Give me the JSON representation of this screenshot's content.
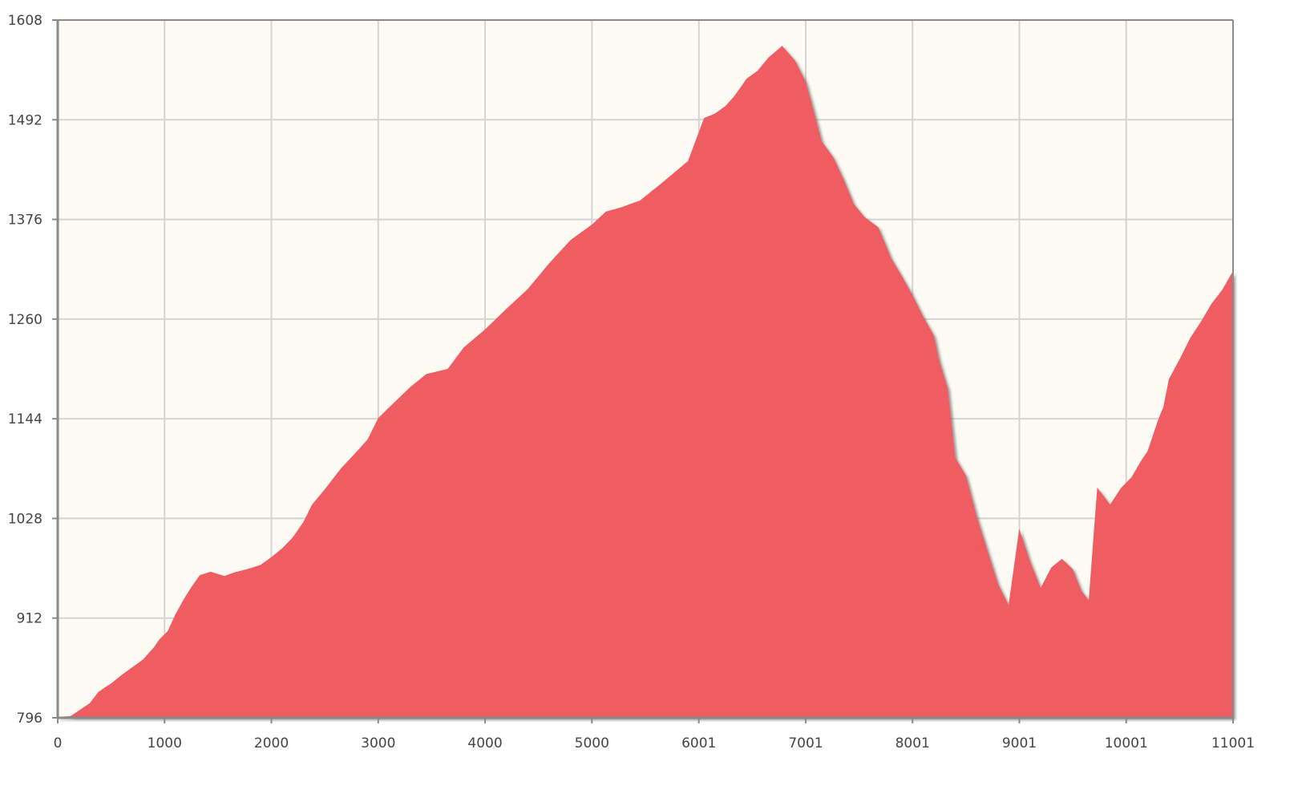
{
  "chart_data": {
    "type": "area",
    "title": "",
    "xlabel": "",
    "ylabel": "",
    "xlim": [
      0,
      11001
    ],
    "ylim": [
      796,
      1608
    ],
    "x_ticks": [
      0,
      1000,
      2000,
      3000,
      4000,
      5000,
      6001,
      7001,
      8001,
      9001,
      10001,
      11001
    ],
    "y_ticks": [
      796,
      912,
      1028,
      1144,
      1260,
      1376,
      1492,
      1608
    ],
    "grid": true,
    "legend": "none",
    "colors": {
      "fill": "#ef5c62",
      "plot_background": "#fefbf4",
      "grid": "#d4d4d4",
      "axis": "#8a8a8a",
      "shadow": "#555555"
    },
    "series": [
      {
        "x": [
          0,
          120,
          300,
          380,
          450,
          500,
          600,
          700,
          800,
          900,
          950,
          1030,
          1100,
          1180,
          1250,
          1330,
          1430,
          1560,
          1650,
          1800,
          1900,
          2000,
          2100,
          2200,
          2300,
          2380,
          2500,
          2650,
          2800,
          2900,
          3000,
          3150,
          3300,
          3450,
          3650,
          3800,
          4000,
          4200,
          4400,
          4600,
          4800,
          5000,
          5130,
          5270,
          5450,
          5650,
          5900,
          6050,
          6150,
          6250,
          6330,
          6450,
          6550,
          6650,
          6780,
          6900,
          7001,
          7050,
          7150,
          7260,
          7350,
          7450,
          7550,
          7680,
          7800,
          7900,
          8000,
          8100,
          8200,
          8250,
          8330,
          8400,
          8500,
          8600,
          8700,
          8800,
          8900,
          9000,
          9100,
          9200,
          9300,
          9400,
          9500,
          9580,
          9650,
          9730,
          9850,
          9950,
          10050,
          10150,
          10200,
          10300,
          10350,
          10400,
          10500,
          10600,
          10700,
          10800,
          10900,
          11001
        ],
        "y": [
          797,
          798,
          813,
          826,
          832,
          836,
          846,
          855,
          864,
          878,
          887,
          897,
          916,
          934,
          948,
          962,
          966,
          961,
          965,
          970,
          974,
          983,
          993,
          1006,
          1024,
          1044,
          1062,
          1086,
          1106,
          1120,
          1145,
          1163,
          1181,
          1196,
          1202,
          1227,
          1248,
          1272,
          1295,
          1325,
          1352,
          1370,
          1385,
          1390,
          1398,
          1418,
          1444,
          1494,
          1499,
          1508,
          1519,
          1540,
          1549,
          1564,
          1578,
          1561,
          1536,
          1514,
          1467,
          1448,
          1424,
          1394,
          1379,
          1367,
          1331,
          1310,
          1288,
          1263,
          1241,
          1212,
          1179,
          1099,
          1078,
          1031,
          991,
          952,
          927,
          1016,
          978,
          947,
          971,
          981,
          969,
          944,
          933,
          1064,
          1044,
          1063,
          1076,
          1097,
          1106,
          1143,
          1158,
          1190,
          1213,
          1238,
          1257,
          1278,
          1294,
          1316
        ]
      }
    ]
  }
}
